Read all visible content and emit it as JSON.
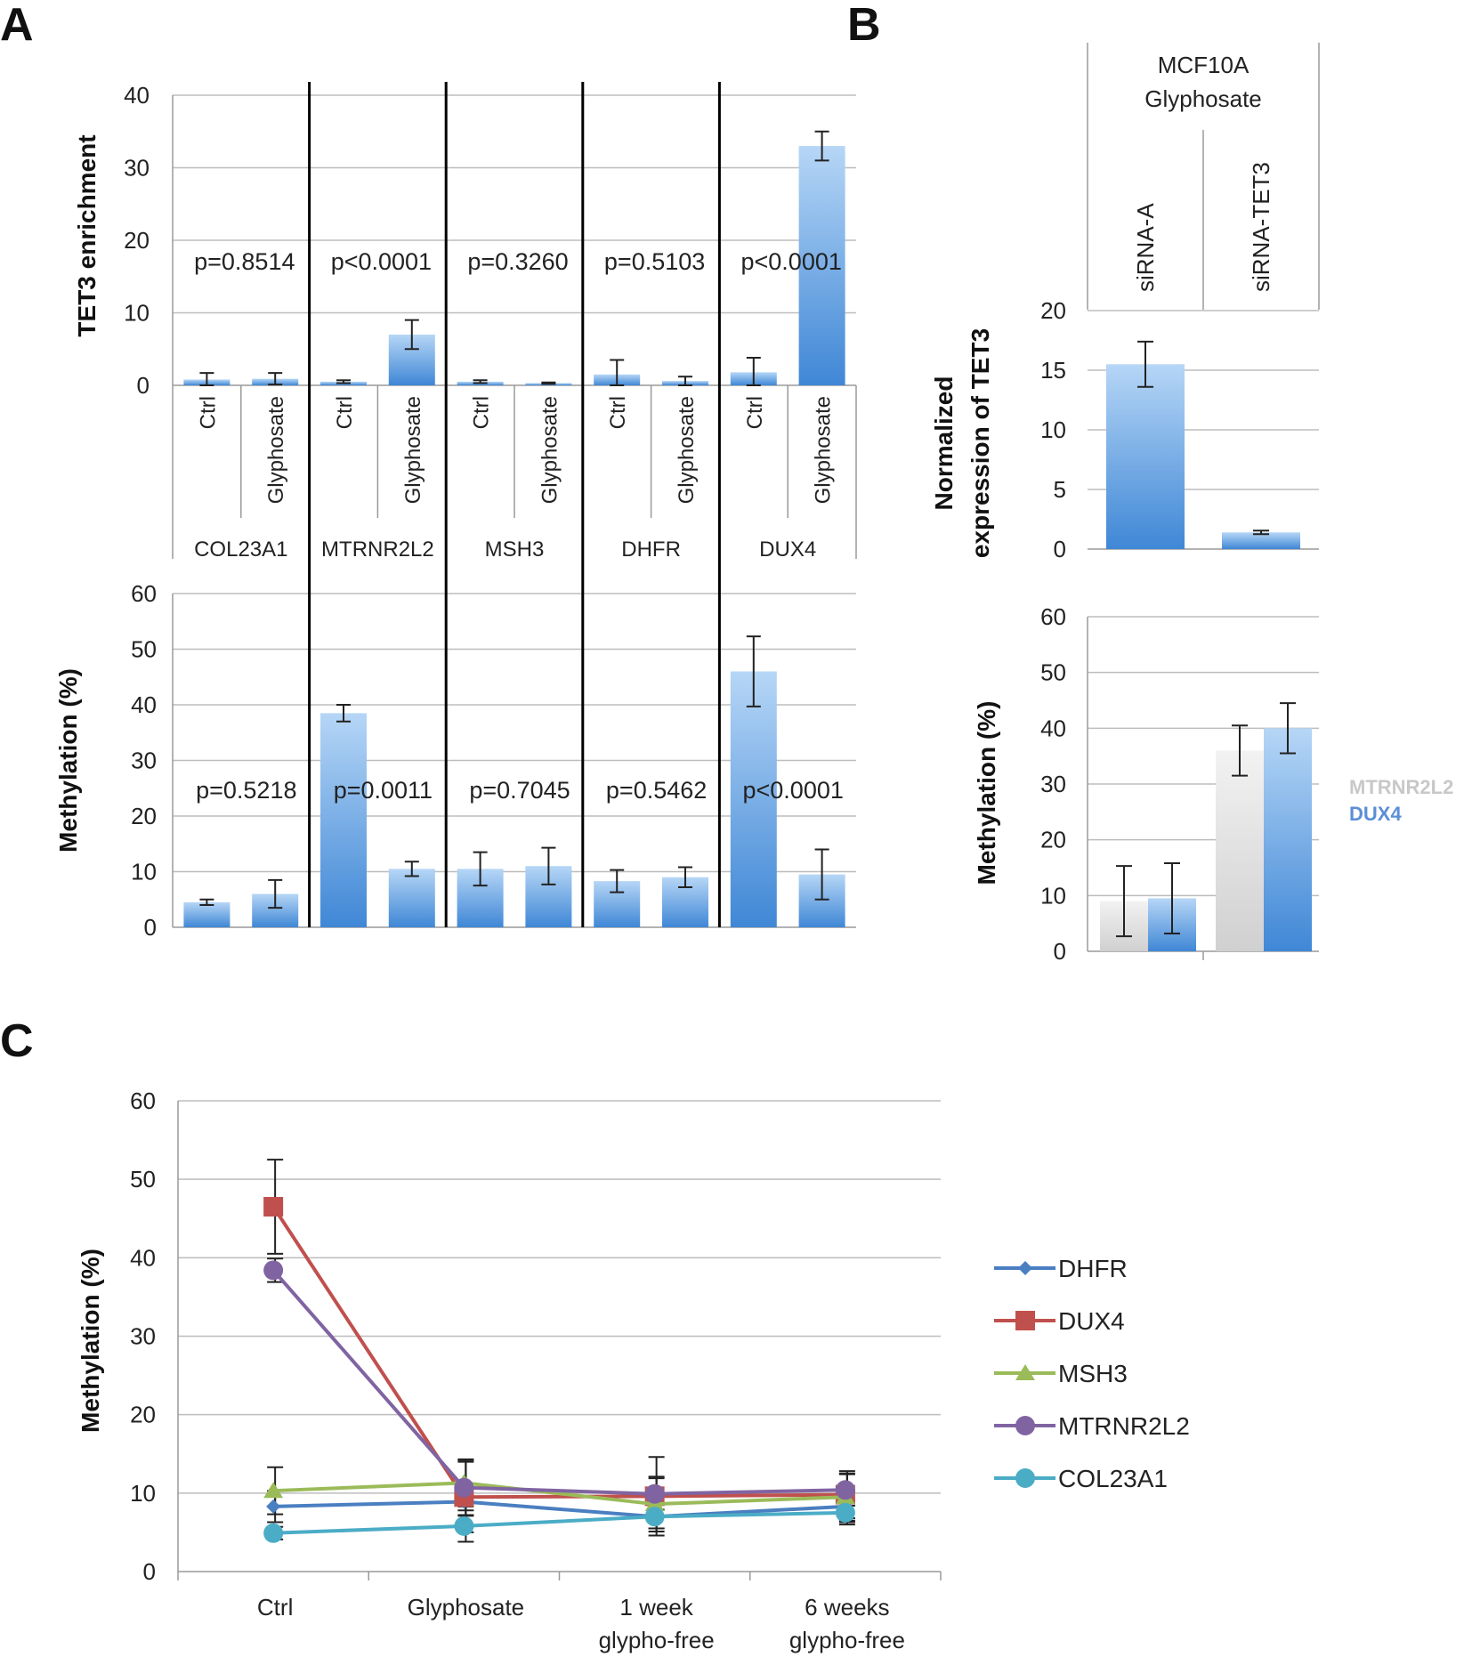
{
  "panels": {
    "a": "A",
    "b": "B",
    "c": "C"
  },
  "colors": {
    "bar_light": "#b6d6f6",
    "bar_dark": "#3f87d6",
    "gray_light": "#ececec",
    "gray_dark": "#d3d3d3",
    "dux4_legend": "#5b8fd6",
    "mtrnr_legend": "#c8c8c8"
  },
  "chart_data": [
    {
      "id": "A_top",
      "type": "bar",
      "title": "",
      "ylabel": "TET3 enrichment",
      "ylim": [
        0,
        40
      ],
      "yticks": [
        0,
        10,
        20,
        30,
        40
      ],
      "grid": true,
      "groups": [
        "COL23A1",
        "MTRNR2L2",
        "MSH3",
        "DHFR",
        "DUX4"
      ],
      "conditions": [
        "Ctrl",
        "Glyphosate"
      ],
      "values": [
        [
          0.8,
          0.9
        ],
        [
          0.5,
          7.0
        ],
        [
          0.5,
          0.3
        ],
        [
          1.5,
          0.6
        ],
        [
          1.8,
          33.0
        ]
      ],
      "errors": [
        [
          0.9,
          0.8
        ],
        [
          0.2,
          2.0
        ],
        [
          0.2,
          0.1
        ],
        [
          2.0,
          0.6
        ],
        [
          2.0,
          2.0
        ]
      ],
      "pvalues": [
        "p=0.8514",
        "p<0.0001",
        "p=0.3260",
        "p=0.5103",
        "p<0.0001"
      ]
    },
    {
      "id": "A_bottom",
      "type": "bar",
      "title": "",
      "ylabel": "Methylation (%)",
      "ylim": [
        0,
        60
      ],
      "yticks": [
        0,
        10,
        20,
        30,
        40,
        50,
        60
      ],
      "grid": true,
      "groups": [
        "COL23A1",
        "MTRNR2L2",
        "MSH3",
        "DHFR",
        "DUX4"
      ],
      "conditions": [
        "Ctrl",
        "Glyphosate"
      ],
      "values": [
        [
          4.5,
          6.0
        ],
        [
          38.5,
          10.5
        ],
        [
          10.5,
          11.0
        ],
        [
          8.3,
          9.0
        ],
        [
          46.0,
          9.5
        ]
      ],
      "errors": [
        [
          0.5,
          2.5
        ],
        [
          1.5,
          1.3
        ],
        [
          3.0,
          3.3
        ],
        [
          2.0,
          1.8
        ],
        [
          6.3,
          4.5
        ]
      ],
      "pvalues": [
        "p=0.5218",
        "p=0.0011",
        "p=0.7045",
        "p=0.5462",
        "p<0.0001"
      ]
    },
    {
      "id": "B_top",
      "type": "bar",
      "title": "MCF10A Glyphosate",
      "title_lines": [
        "MCF10A",
        "Glyphosate"
      ],
      "ylabel_lines": [
        "Normalized",
        "expression of TET3"
      ],
      "ylim": [
        0,
        20
      ],
      "yticks": [
        0,
        5,
        10,
        15,
        20
      ],
      "grid": true,
      "categories": [
        "siRNA-A",
        "siRNA-TET3"
      ],
      "values": [
        15.5,
        1.4
      ],
      "errors": [
        1.9,
        0.15
      ]
    },
    {
      "id": "B_bottom",
      "type": "bar",
      "title": "",
      "ylabel": "Methylation (%)",
      "ylim": [
        0,
        60
      ],
      "yticks": [
        0,
        10,
        20,
        30,
        40,
        50,
        60
      ],
      "grid": true,
      "categories": [
        "siRNA-A",
        "siRNA-TET3"
      ],
      "legend_position": "right",
      "series": [
        {
          "name": "MTRNR2L2",
          "values": [
            9.0,
            36.0
          ],
          "errors": [
            6.3,
            4.5
          ]
        },
        {
          "name": "DUX4",
          "values": [
            9.5,
            40.0
          ],
          "errors": [
            6.3,
            4.5
          ]
        }
      ]
    },
    {
      "id": "C",
      "type": "line",
      "title": "",
      "ylabel": "Methylation (%)",
      "ylim": [
        0,
        60
      ],
      "yticks": [
        0,
        10,
        20,
        30,
        40,
        50,
        60
      ],
      "grid": true,
      "categories": [
        [
          "Ctrl"
        ],
        [
          "Glyphosate"
        ],
        [
          "1 week",
          "glypho-free"
        ],
        [
          "6 weeks",
          "glypho-free"
        ]
      ],
      "legend_position": "right",
      "series": [
        {
          "name": "DHFR",
          "color": "#4a7fc1",
          "marker": "diamond",
          "values": [
            8.3,
            8.9,
            7.0,
            8.3
          ],
          "errors": [
            2.0,
            1.8,
            1.5,
            2.0
          ]
        },
        {
          "name": "DUX4",
          "color": "#c0504d",
          "marker": "square",
          "values": [
            46.5,
            9.5,
            9.6,
            9.8
          ],
          "errors": [
            6.0,
            4.5,
            5.0,
            3.0
          ]
        },
        {
          "name": "MSH3",
          "color": "#9bbb59",
          "marker": "triangle",
          "values": [
            10.3,
            11.3,
            8.6,
            9.5
          ],
          "errors": [
            3.0,
            3.0,
            3.5,
            3.0
          ]
        },
        {
          "name": "MTRNR2L2",
          "color": "#8064a2",
          "marker": "circle",
          "values": [
            38.4,
            10.7,
            9.9,
            10.4
          ],
          "errors": [
            1.5,
            3.5,
            2.0,
            2.0
          ]
        },
        {
          "name": "COL23A1",
          "color": "#4bacc6",
          "marker": "circle",
          "values": [
            4.9,
            5.8,
            7.0,
            7.5
          ],
          "errors": [
            0.8,
            2.0,
            1.5,
            1.5
          ]
        }
      ]
    }
  ]
}
